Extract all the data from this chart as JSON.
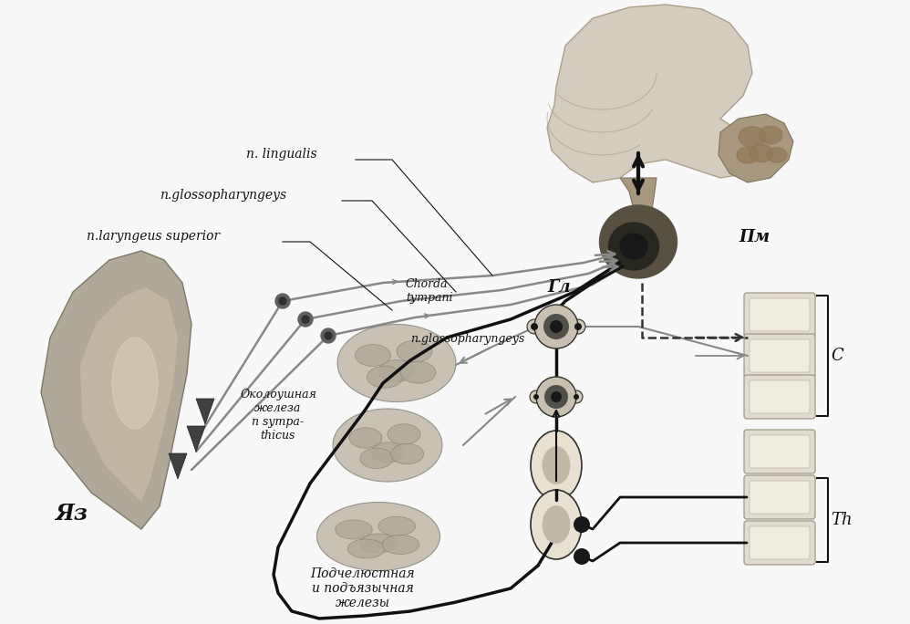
{
  "bg_color": "#f8f8f8",
  "labels": {
    "n_lingualis": "n. lingualis",
    "n_glossopharyngeys_top": "n.glossopharyngeys",
    "n_laryngeus": "n.laryngeus superior",
    "chorda_tympani": "Chorda\ntympani",
    "n_glossopharyngeys_mid": "n.glossopharyngeys",
    "yaz": "Яз",
    "PM": "Пм",
    "GL": "Гл",
    "okoloushnaya": "Околоушная\nжелеза\nn sympa-\nthicus",
    "podyachelyustnaya": "Подчелюстная\nи подъязычная\nжелезы",
    "C": "C",
    "Th": "Th"
  },
  "colors": {
    "background": "#f8f8f8",
    "gray_nerve": "#888888",
    "black_nerve": "#111111",
    "dashed_nerve": "#333333",
    "brain_light": "#d0c8b8",
    "brain_mid": "#a89880",
    "brain_dark": "#605848",
    "medulla_dark": "#282820",
    "tongue_outer": "#b0a898",
    "tongue_inner": "#c8bca8",
    "gland_fill": "#c0b8a8",
    "gland_edge": "#888880",
    "spinal_fill": "#e0dcd0",
    "spinal_edge": "#a09888",
    "ganglion_outer": "#c8c0b0",
    "ganglion_mid": "#505048",
    "ganglion_dark": "#181818",
    "text_color": "#111111"
  }
}
